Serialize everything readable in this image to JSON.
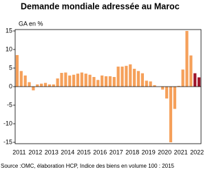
{
  "chart_data": {
    "type": "bar",
    "title": "Demande mondiale adressée au Maroc",
    "y_label": "GA en %",
    "source": "Source :OMC, élaboration HCP, Indice des biens en volume 100 : 2015",
    "categories": [
      "2011",
      null,
      null,
      null,
      "2012",
      null,
      null,
      null,
      "2013",
      null,
      null,
      null,
      "2014",
      null,
      null,
      null,
      "2015",
      null,
      null,
      null,
      "2016",
      null,
      null,
      null,
      "2017",
      null,
      null,
      null,
      "2018",
      null,
      null,
      null,
      "2019",
      null,
      null,
      null,
      "2020",
      null,
      null,
      null,
      "2021",
      null,
      null,
      null,
      "2022",
      null
    ],
    "values": [
      8.5,
      4.2,
      3.0,
      1.2,
      -1.0,
      0.6,
      0.8,
      1.0,
      0.6,
      0.6,
      2.2,
      3.7,
      3.8,
      3.0,
      3.2,
      3.5,
      3.8,
      3.5,
      3.2,
      2.6,
      1.8,
      3.0,
      2.8,
      2.8,
      2.6,
      5.4,
      5.4,
      5.6,
      6.0,
      4.8,
      4.2,
      3.6,
      1.6,
      1.4,
      0.4,
      0.0,
      -0.8,
      -3.2,
      -15.0,
      -6.0,
      0.2,
      4.6,
      15.0,
      8.4,
      3.6,
      2.5
    ],
    "colors": [
      "#f5a05a",
      "#f5a05a",
      "#f5a05a",
      "#f5a05a",
      "#f5a05a",
      "#f5a05a",
      "#f5a05a",
      "#f5a05a",
      "#f5a05a",
      "#f5a05a",
      "#f5a05a",
      "#f5a05a",
      "#f5a05a",
      "#f5a05a",
      "#f5a05a",
      "#f5a05a",
      "#f5a05a",
      "#f5a05a",
      "#f5a05a",
      "#f5a05a",
      "#f5a05a",
      "#f5a05a",
      "#f5a05a",
      "#f5a05a",
      "#f5a05a",
      "#f5a05a",
      "#f5a05a",
      "#f5a05a",
      "#f5a05a",
      "#f5a05a",
      "#f5a05a",
      "#f5a05a",
      "#f5a05a",
      "#f5a05a",
      "#f5a05a",
      "#f5a05a",
      "#f5a05a",
      "#f5a05a",
      "#f5a05a",
      "#f5a05a",
      "#f5a05a",
      "#f5a05a",
      "#f5a05a",
      "#f5a05a",
      "#a0182c",
      "#a0182c"
    ],
    "ylim": [
      -15,
      15
    ],
    "yticks": [
      -15,
      -10,
      -5,
      0,
      5,
      10,
      15
    ],
    "grid": false
  }
}
